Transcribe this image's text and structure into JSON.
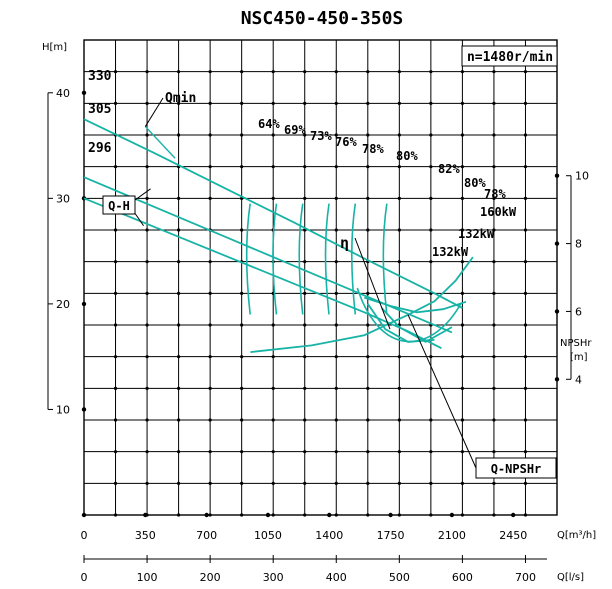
{
  "chart_data": {
    "type": "line",
    "title": "NSC450-450-350S",
    "speed_label": "n=1480r/min",
    "head_axis": {
      "label": "H[m]",
      "range": [
        0,
        45
      ],
      "ticks": [
        10,
        20,
        30,
        40
      ]
    },
    "npsh_axis": {
      "label": "NPSHr",
      "unit": "[m]",
      "range": [
        0,
        14
      ],
      "ticks": [
        4,
        6,
        8,
        10
      ]
    },
    "flow_m3h_axis": {
      "label": "Q[m³/h]",
      "range": [
        0,
        2700
      ],
      "ticks": [
        0,
        350,
        700,
        1050,
        1400,
        1750,
        2100,
        2450
      ]
    },
    "flow_ls_axis": {
      "label": "Q[l/s]",
      "range": [
        0,
        750
      ],
      "ticks": [
        0,
        100,
        200,
        300,
        400,
        500,
        600,
        700
      ]
    },
    "diameter_labels": [
      "330",
      "305",
      "296"
    ],
    "series": [
      {
        "name": "QH-330",
        "x": [
          0,
          400,
          800,
          1200,
          1600,
          2000,
          2160
        ],
        "y": [
          37.5,
          34.3,
          31.0,
          27.7,
          24.3,
          21.0,
          19.6
        ]
      },
      {
        "name": "QH-305",
        "x": [
          0,
          400,
          800,
          1200,
          1600,
          1900,
          2100
        ],
        "y": [
          32.0,
          29.2,
          26.4,
          23.6,
          20.8,
          18.7,
          17.3
        ]
      },
      {
        "name": "QH-296",
        "x": [
          0,
          400,
          800,
          1200,
          1600,
          1850,
          2040
        ],
        "y": [
          30.0,
          27.3,
          24.6,
          21.9,
          19.2,
          17.4,
          15.8
        ]
      },
      {
        "name": "Power-160kW",
        "x": [
          1600,
          1750,
          1900,
          2050,
          2180
        ],
        "y": [
          20.6,
          19.8,
          19.2,
          19.5,
          20.2
        ]
      },
      {
        "name": "Power-132kW-a",
        "x": [
          1700,
          1800,
          1950,
          2100
        ],
        "y": [
          19.6,
          17.8,
          16.4,
          17.8
        ]
      },
      {
        "name": "Power-132kW-b",
        "x": [
          1620,
          1720,
          1850,
          2000
        ],
        "y": [
          20.0,
          17.6,
          16.4,
          16.6
        ]
      },
      {
        "name": "Q-NPSHr",
        "x": [
          950,
          1300,
          1600,
          1850,
          2000,
          2120,
          2220
        ],
        "y": [
          4.8,
          5.0,
          5.3,
          5.9,
          6.3,
          6.9,
          7.6
        ]
      }
    ],
    "efficiency_labels": [
      "64%",
      "69%",
      "73%",
      "76%",
      "78%",
      "80%",
      "82%",
      "80%",
      "78%"
    ],
    "annotations": [
      "Qmin",
      "Q-H",
      "η",
      "160kW",
      "132kW",
      "132kW",
      "Q-NPSHr"
    ]
  }
}
